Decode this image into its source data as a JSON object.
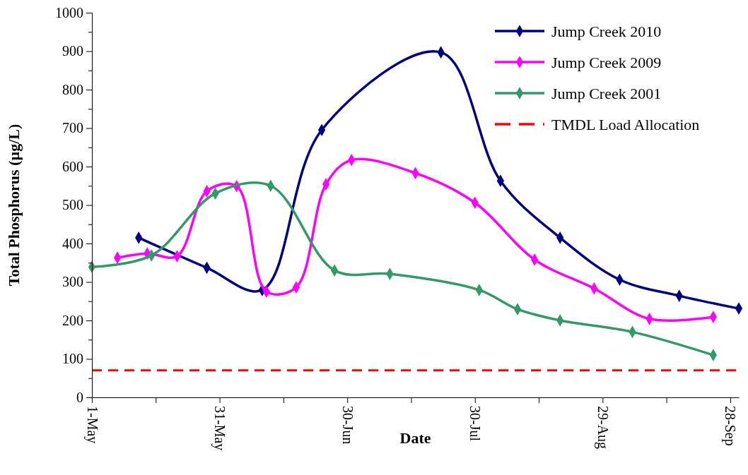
{
  "chart_data": {
    "type": "line",
    "xlabel": "Date",
    "ylabel": "Total Phosphorus (µg/L)",
    "xlim": [
      "--05-01",
      "--09-30"
    ],
    "xticks": [
      {
        "value": "--05-01",
        "label": "1-May"
      },
      {
        "value": "--05-16",
        "label": null
      },
      {
        "value": "--05-31",
        "label": "31-May"
      },
      {
        "value": "--06-15",
        "label": null
      },
      {
        "value": "--06-30",
        "label": "30-Jun"
      },
      {
        "value": "--07-15",
        "label": null
      },
      {
        "value": "--07-30",
        "label": "30-Jul"
      },
      {
        "value": "--08-14",
        "label": null
      },
      {
        "value": "--08-29",
        "label": "29-Aug"
      },
      {
        "value": "--09-13",
        "label": null
      },
      {
        "value": "--09-28",
        "label": "28-Sep"
      }
    ],
    "ylim": [
      0,
      1000
    ],
    "yticks": [
      0,
      {
        "value": 50,
        "label": null
      },
      100,
      {
        "value": 150,
        "label": null
      },
      200,
      {
        "value": 250,
        "label": null
      },
      300,
      {
        "value": 350,
        "label": null
      },
      400,
      {
        "value": 450,
        "label": null
      },
      500,
      {
        "value": 550,
        "label": null
      },
      600,
      {
        "value": 650,
        "label": null
      },
      700,
      {
        "value": 750,
        "label": null
      },
      800,
      {
        "value": 850,
        "label": null
      },
      900,
      {
        "value": 950,
        "label": null
      },
      1000
    ],
    "marker": "diamond",
    "legend": "top right",
    "grid": false,
    "series": [
      {
        "name": "Jump Creek 2010",
        "color": "#000080",
        "x": [
          "--05-12",
          "--05-28",
          "--06-10",
          "--06-24",
          "--07-22",
          "--08-05",
          "--08-19",
          "--09-02",
          "--09-16",
          "--09-30"
        ],
        "values": [
          415,
          337,
          279,
          695,
          897,
          563,
          415,
          306,
          264,
          231
        ]
      },
      {
        "name": "Jump Creek 2009",
        "color": "#ff00ff",
        "x": [
          "--05-07",
          "--05-14",
          "--05-21",
          "--05-28",
          "--06-04",
          "--06-11",
          "--06-18",
          "--06-25",
          "--07-01",
          "--07-16",
          "--07-30",
          "--08-13",
          "--08-27",
          "--09-09",
          "--09-24"
        ],
        "values": [
          363,
          374,
          367,
          536,
          549,
          275,
          286,
          554,
          617,
          583,
          506,
          358,
          283,
          204,
          209
        ]
      },
      {
        "name": "Jump Creek 2001",
        "color": "#339966",
        "x": [
          "--05-01",
          "--05-15",
          "--05-30",
          "--06-12",
          "--06-27",
          "--07-10",
          "--07-31",
          "--08-09",
          "--08-19",
          "--09-05",
          "--09-24"
        ],
        "values": [
          339,
          369,
          530,
          550,
          330,
          321,
          279,
          229,
          200,
          170,
          110
        ]
      }
    ],
    "ref_lines": [
      {
        "axis": "y",
        "value": 70,
        "label": "TMDL Load Allocation",
        "color": "#ff0000",
        "line_style": "dashed"
      }
    ]
  }
}
